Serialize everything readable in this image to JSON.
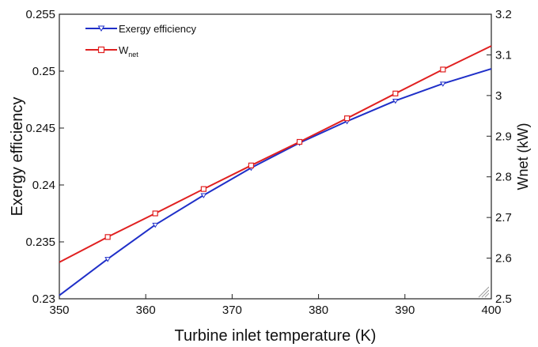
{
  "chart_data": {
    "type": "line",
    "xlabel": "Turbine inlet temperature (K)",
    "ylabel": "Exergy efficiency",
    "y2label": "Wnet (kW)",
    "xlim": [
      350,
      400
    ],
    "ylim": [
      0.23,
      0.255
    ],
    "y2lim": [
      2.5,
      3.2
    ],
    "xticks": [
      "350",
      "360",
      "370",
      "380",
      "390",
      "400"
    ],
    "yticks": [
      "0.23",
      "0.235",
      "0.24",
      "0.245",
      "0.25",
      "0.255"
    ],
    "y2ticks": [
      "2.5",
      "2.6",
      "2.7",
      "2.8",
      "2.9",
      "3",
      "3.1",
      "3.2"
    ],
    "grid": false,
    "legend_position": "top-left",
    "series": [
      {
        "name": "Exergy efficiency",
        "axis": "left",
        "color": "#1f2fc8",
        "marker": "triangle-down",
        "x": [
          350,
          355.6,
          361.1,
          366.7,
          372.2,
          377.8,
          383.3,
          388.9,
          394.4,
          400
        ],
        "y": [
          0.2303,
          0.2335,
          0.2365,
          0.2391,
          0.2415,
          0.2437,
          0.2456,
          0.2474,
          0.2489,
          0.2502
        ]
      },
      {
        "name_main": "W",
        "name_sub": "net",
        "axis": "right",
        "color": "#e02020",
        "marker": "square",
        "x": [
          350,
          355.6,
          361.1,
          366.7,
          372.2,
          377.8,
          383.3,
          388.9,
          394.4,
          400
        ],
        "y": [
          2.59,
          2.652,
          2.71,
          2.77,
          2.828,
          2.886,
          2.944,
          3.005,
          3.064,
          3.122
        ]
      }
    ]
  }
}
